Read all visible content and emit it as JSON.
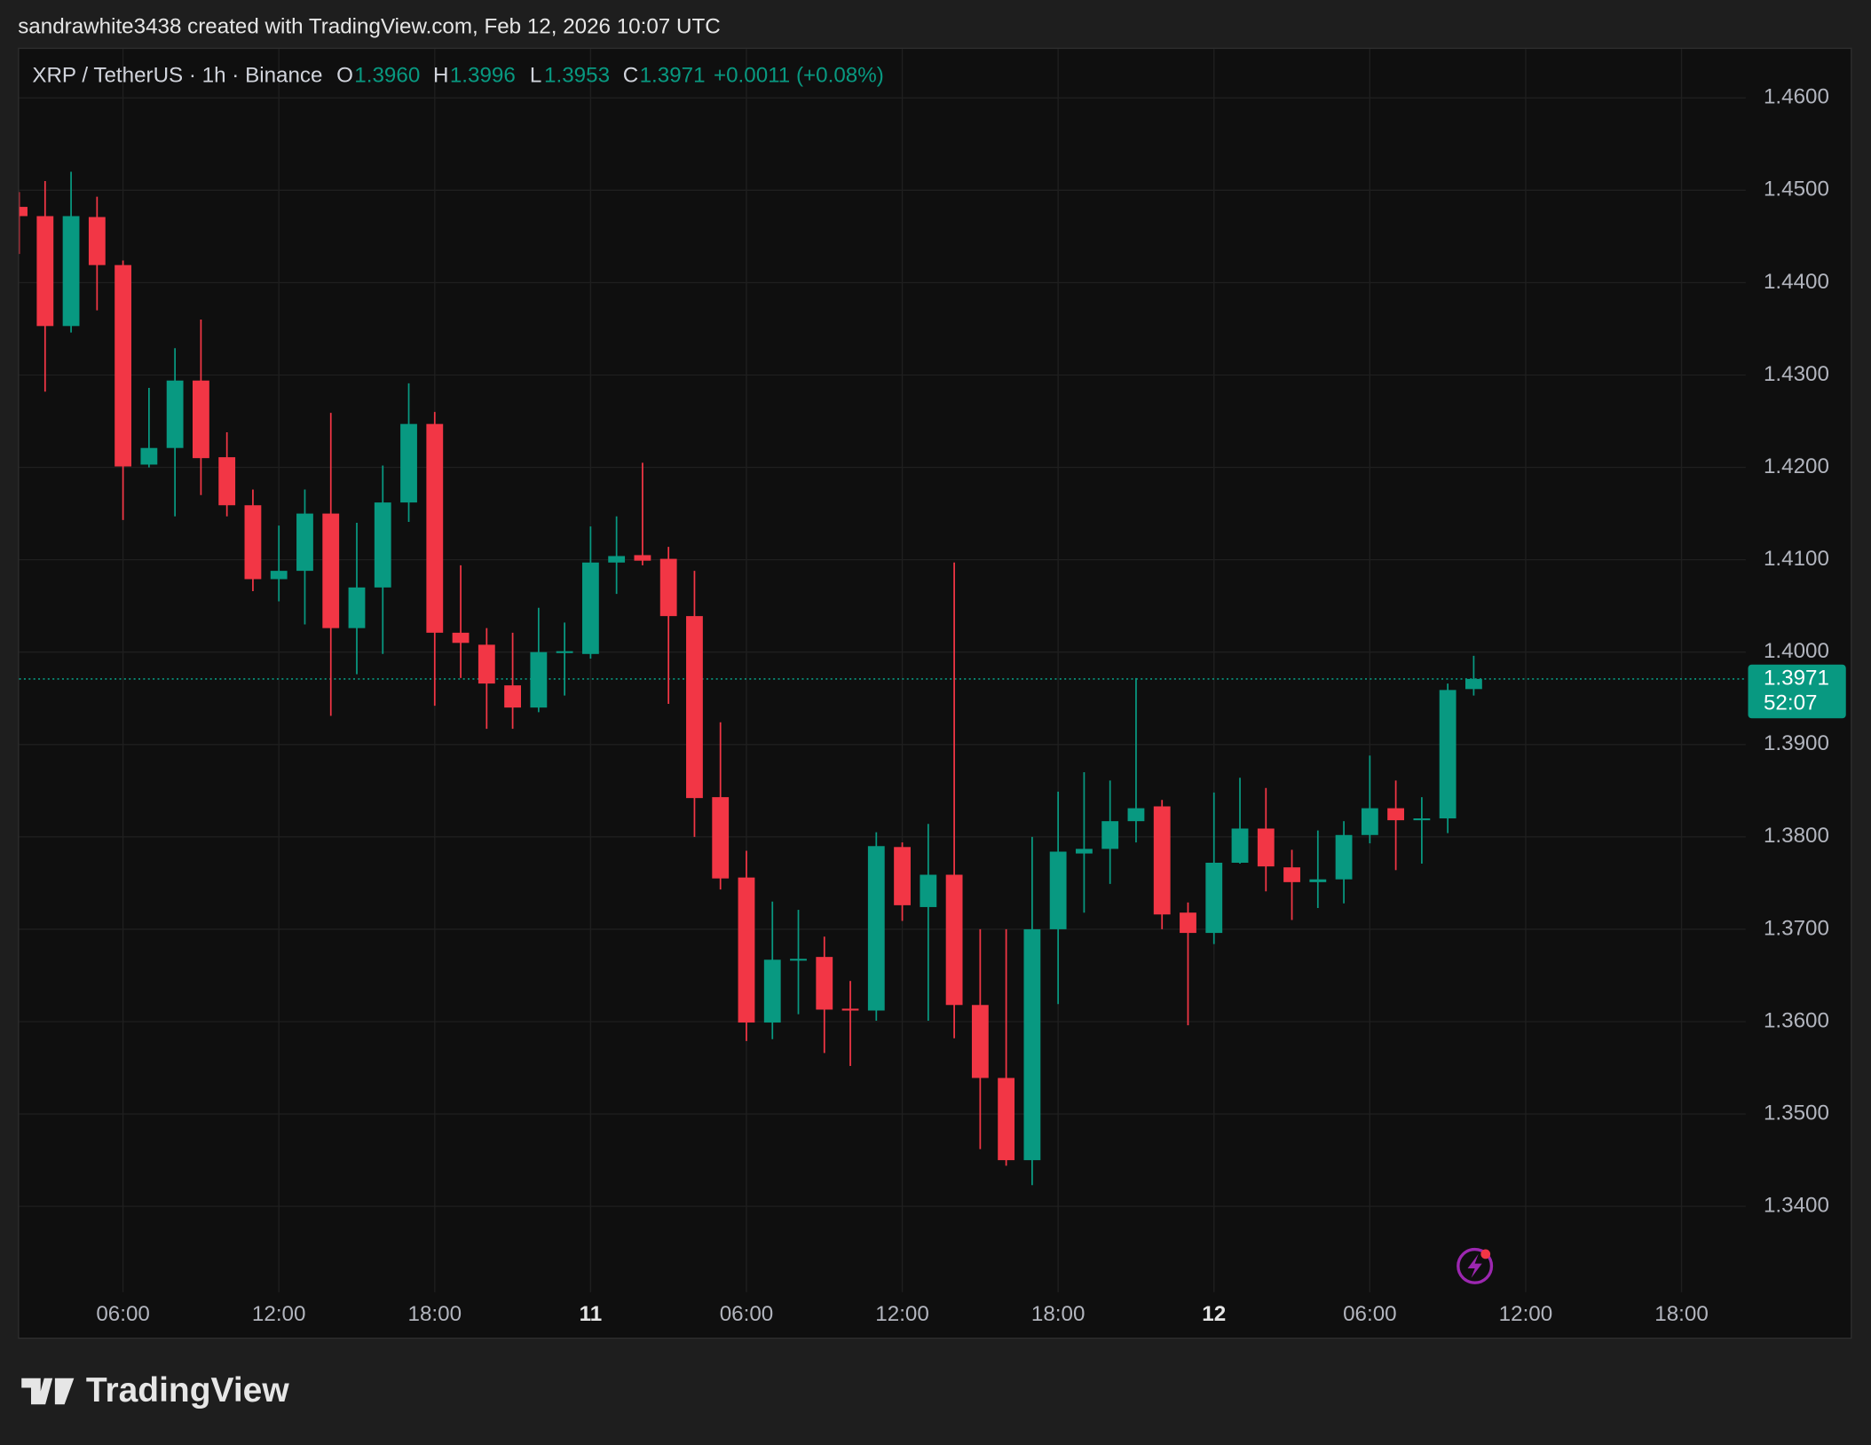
{
  "header": {
    "caption": "sandrawhite3438 created with TradingView.com, Feb 12, 2026 10:07 UTC"
  },
  "footer": {
    "brand": "TradingView"
  },
  "chart_data": {
    "type": "candlestick",
    "legend": {
      "symbol": "XRP / TetherUS · 1h · Binance",
      "open_label": "O",
      "open": "1.3960",
      "high_label": "H",
      "high": "1.3996",
      "low_label": "L",
      "low": "1.3953",
      "close_label": "C",
      "close": "1.3971",
      "change": "+0.0011 (+0.08%)"
    },
    "countdown": "52:07",
    "up_color": "#089981",
    "down_color": "#f23645",
    "grid": true,
    "x": [
      0,
      1,
      2,
      3,
      4,
      5,
      6,
      7,
      8,
      9,
      10,
      11,
      12,
      13,
      14,
      15,
      16,
      17,
      18,
      19,
      20,
      21,
      22,
      23,
      24,
      25,
      26,
      27,
      28,
      29,
      30,
      31,
      32,
      33,
      34,
      35,
      36,
      37,
      38,
      39,
      40,
      41,
      42,
      43,
      44,
      45,
      46,
      47,
      48,
      49,
      50,
      51,
      52,
      53,
      54,
      55,
      56
    ],
    "open": [
      1.4482,
      1.4472,
      1.4353,
      1.4471,
      1.4419,
      1.4203,
      1.4221,
      1.4294,
      1.4211,
      1.4159,
      1.4079,
      1.4088,
      1.415,
      1.4026,
      1.407,
      1.4162,
      1.4247,
      1.4021,
      1.4008,
      1.3964,
      1.394,
      1.3999,
      1.3998,
      1.4097,
      1.4105,
      1.4101,
      1.4039,
      1.3843,
      1.3756,
      1.3599,
      1.3666,
      1.367,
      1.3614,
      1.3612,
      1.3789,
      1.3724,
      1.3759,
      1.3618,
      1.3539,
      1.345,
      1.37,
      1.3782,
      1.3787,
      1.3817,
      1.3833,
      1.3718,
      1.3696,
      1.3772,
      1.3809,
      1.3767,
      1.3751,
      1.3754,
      1.3802,
      1.3831,
      1.3818,
      1.382,
      1.396
    ],
    "high": [
      1.4498,
      1.451,
      1.452,
      1.4493,
      1.4424,
      1.4286,
      1.4329,
      1.436,
      1.4238,
      1.4176,
      1.4137,
      1.4176,
      1.4259,
      1.414,
      1.4202,
      1.4291,
      1.426,
      1.4094,
      1.4026,
      1.4021,
      1.4048,
      1.4032,
      1.4136,
      1.4147,
      1.4205,
      1.4114,
      1.4088,
      1.3924,
      1.3785,
      1.373,
      1.3721,
      1.3692,
      1.3644,
      1.3805,
      1.3794,
      1.3814,
      1.4097,
      1.37,
      1.37,
      1.38,
      1.3849,
      1.387,
      1.3861,
      1.3972,
      1.384,
      1.3729,
      1.3848,
      1.3864,
      1.3853,
      1.3786,
      1.3807,
      1.3817,
      1.3888,
      1.3861,
      1.3843,
      1.3966,
      1.3996
    ],
    "low": [
      1.4431,
      1.4282,
      1.4346,
      1.437,
      1.4143,
      1.42,
      1.4147,
      1.417,
      1.4147,
      1.4066,
      1.4055,
      1.403,
      1.3931,
      1.3976,
      1.3998,
      1.4141,
      1.3942,
      1.3972,
      1.3917,
      1.3917,
      1.3935,
      1.3953,
      1.3993,
      1.4063,
      1.4094,
      1.3944,
      1.38,
      1.3743,
      1.3579,
      1.3581,
      1.3608,
      1.3566,
      1.3552,
      1.3601,
      1.3709,
      1.3601,
      1.3582,
      1.3462,
      1.3444,
      1.3423,
      1.3619,
      1.3718,
      1.3749,
      1.3794,
      1.37,
      1.3596,
      1.3684,
      1.3771,
      1.3741,
      1.371,
      1.3723,
      1.3728,
      1.3793,
      1.3764,
      1.3771,
      1.3804,
      1.3953
    ],
    "close": [
      1.4472,
      1.4353,
      1.4472,
      1.4419,
      1.4201,
      1.4221,
      1.4294,
      1.421,
      1.4159,
      1.4079,
      1.4088,
      1.415,
      1.4026,
      1.407,
      1.4162,
      1.4247,
      1.4021,
      1.401,
      1.3966,
      1.394,
      1.4,
      1.4001,
      1.4097,
      1.4104,
      1.4099,
      1.4039,
      1.3842,
      1.3755,
      1.3599,
      1.3667,
      1.3668,
      1.3613,
      1.3612,
      1.379,
      1.3726,
      1.3759,
      1.3618,
      1.3539,
      1.345,
      1.37,
      1.3784,
      1.3787,
      1.3817,
      1.3831,
      1.3716,
      1.3696,
      1.3772,
      1.3809,
      1.3768,
      1.3751,
      1.3754,
      1.3802,
      1.3831,
      1.3818,
      1.382,
      1.3959,
      1.3971
    ],
    "xlim": [
      0,
      66.47
    ],
    "xticks": [
      {
        "value": 4,
        "label": "06:00"
      },
      {
        "value": 10,
        "label": "12:00"
      },
      {
        "value": 16,
        "label": "18:00"
      },
      {
        "value": 22,
        "label": "11"
      },
      {
        "value": 28,
        "label": "06:00"
      },
      {
        "value": 34,
        "label": "12:00"
      },
      {
        "value": 40,
        "label": "18:00"
      },
      {
        "value": 46,
        "label": "12"
      },
      {
        "value": 52,
        "label": "06:00"
      },
      {
        "value": 58,
        "label": "12:00"
      },
      {
        "value": 64,
        "label": "18:00"
      }
    ],
    "ylim": [
      1.3307,
      1.4653
    ],
    "yticks": [
      {
        "value": 1.34,
        "label": "1.3400"
      },
      {
        "value": 1.35,
        "label": "1.3500"
      },
      {
        "value": 1.36,
        "label": "1.3600"
      },
      {
        "value": 1.37,
        "label": "1.3700"
      },
      {
        "value": 1.38,
        "label": "1.3800"
      },
      {
        "value": 1.39,
        "label": "1.3900"
      },
      {
        "value": 1.4,
        "label": "1.4000"
      },
      {
        "value": 1.41,
        "label": "1.4100"
      },
      {
        "value": 1.42,
        "label": "1.4200"
      },
      {
        "value": 1.43,
        "label": "1.4300"
      },
      {
        "value": 1.44,
        "label": "1.4400"
      },
      {
        "value": 1.45,
        "label": "1.4500"
      },
      {
        "value": 1.46,
        "label": "1.4600"
      }
    ]
  }
}
